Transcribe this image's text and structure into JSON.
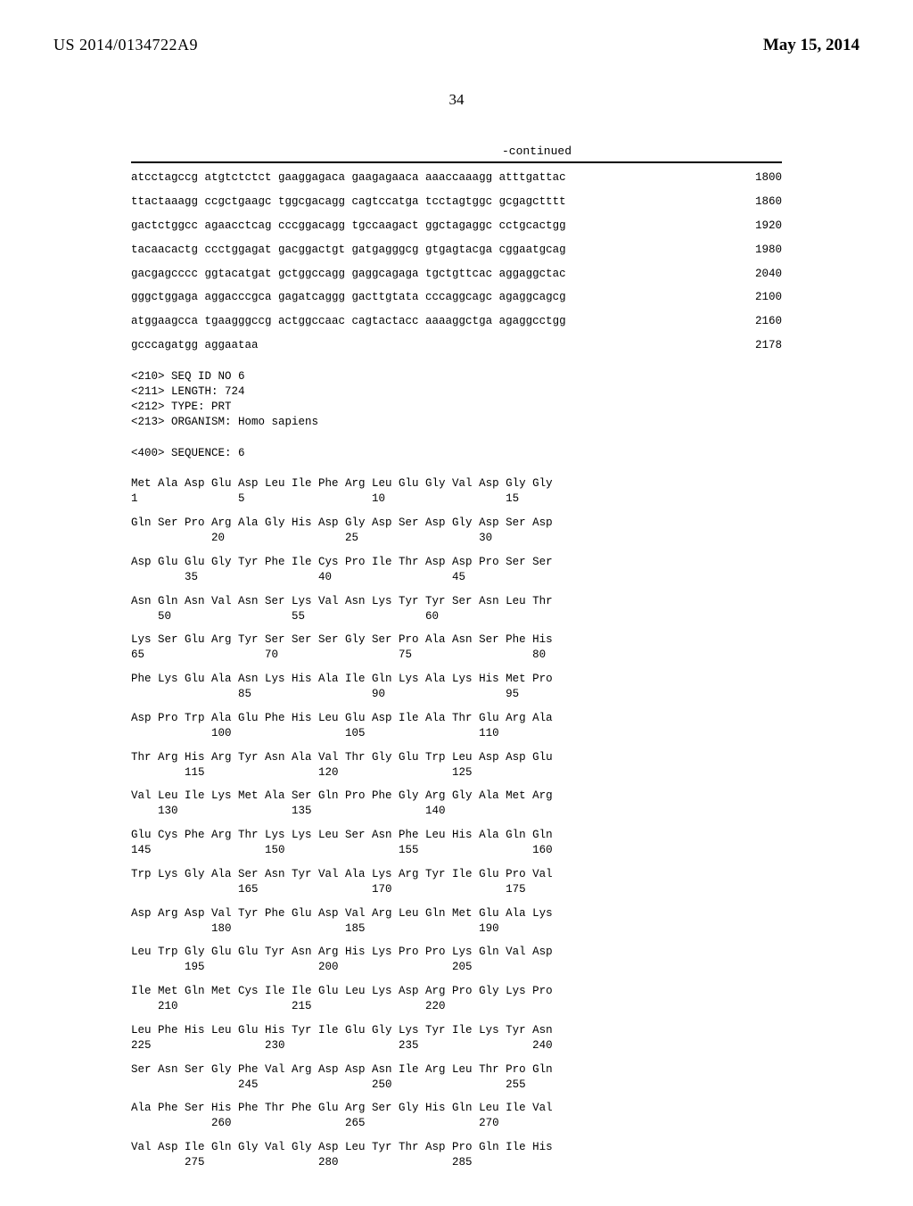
{
  "header": {
    "pub_number": "US 2014/0134722A9",
    "pub_date": "May 15, 2014"
  },
  "page_number": "34",
  "continued_label": "-continued",
  "nucleotide_rows": [
    {
      "seq": "atcctagccg atgtctctct gaaggagaca gaagagaaca aaaccaaagg atttgattac",
      "pos": "1800"
    },
    {
      "seq": "ttactaaagg ccgctgaagc tggcgacagg cagtccatga tcctagtggc gcgagctttt",
      "pos": "1860"
    },
    {
      "seq": "gactctggcc agaacctcag cccggacagg tgccaagact ggctagaggc cctgcactgg",
      "pos": "1920"
    },
    {
      "seq": "tacaacactg ccctggagat gacggactgt gatgagggcg gtgagtacga cggaatgcag",
      "pos": "1980"
    },
    {
      "seq": "gacgagcccc ggtacatgat gctggccagg gaggcagaga tgctgttcac aggaggctac",
      "pos": "2040"
    },
    {
      "seq": "gggctggaga aggacccgca gagatcaggg gacttgtata cccaggcagc agaggcagcg",
      "pos": "2100"
    },
    {
      "seq": "atggaagcca tgaagggccg actggccaac cagtactacc aaaaggctga agaggcctgg",
      "pos": "2160"
    },
    {
      "seq": "gcccagatgg aggaataa",
      "pos": "2178"
    }
  ],
  "seq_header": [
    "<210> SEQ ID NO 6",
    "<211> LENGTH: 724",
    "<212> TYPE: PRT",
    "<213> ORGANISM: Homo sapiens"
  ],
  "seq_marker": "<400> SEQUENCE: 6",
  "protein_rows": [
    {
      "aa": "Met Ala Asp Glu Asp Leu Ile Phe Arg Leu Glu Gly Val Asp Gly Gly",
      "nums": "1               5                   10                  15"
    },
    {
      "aa": "Gln Ser Pro Arg Ala Gly His Asp Gly Asp Ser Asp Gly Asp Ser Asp",
      "nums": "            20                  25                  30"
    },
    {
      "aa": "Asp Glu Glu Gly Tyr Phe Ile Cys Pro Ile Thr Asp Asp Pro Ser Ser",
      "nums": "        35                  40                  45"
    },
    {
      "aa": "Asn Gln Asn Val Asn Ser Lys Val Asn Lys Tyr Tyr Ser Asn Leu Thr",
      "nums": "    50                  55                  60"
    },
    {
      "aa": "Lys Ser Glu Arg Tyr Ser Ser Ser Gly Ser Pro Ala Asn Ser Phe His",
      "nums": "65                  70                  75                  80"
    },
    {
      "aa": "Phe Lys Glu Ala Asn Lys His Ala Ile Gln Lys Ala Lys His Met Pro",
      "nums": "                85                  90                  95"
    },
    {
      "aa": "Asp Pro Trp Ala Glu Phe His Leu Glu Asp Ile Ala Thr Glu Arg Ala",
      "nums": "            100                 105                 110"
    },
    {
      "aa": "Thr Arg His Arg Tyr Asn Ala Val Thr Gly Glu Trp Leu Asp Asp Glu",
      "nums": "        115                 120                 125"
    },
    {
      "aa": "Val Leu Ile Lys Met Ala Ser Gln Pro Phe Gly Arg Gly Ala Met Arg",
      "nums": "    130                 135                 140"
    },
    {
      "aa": "Glu Cys Phe Arg Thr Lys Lys Leu Ser Asn Phe Leu His Ala Gln Gln",
      "nums": "145                 150                 155                 160"
    },
    {
      "aa": "Trp Lys Gly Ala Ser Asn Tyr Val Ala Lys Arg Tyr Ile Glu Pro Val",
      "nums": "                165                 170                 175"
    },
    {
      "aa": "Asp Arg Asp Val Tyr Phe Glu Asp Val Arg Leu Gln Met Glu Ala Lys",
      "nums": "            180                 185                 190"
    },
    {
      "aa": "Leu Trp Gly Glu Glu Tyr Asn Arg His Lys Pro Pro Lys Gln Val Asp",
      "nums": "        195                 200                 205"
    },
    {
      "aa": "Ile Met Gln Met Cys Ile Ile Glu Leu Lys Asp Arg Pro Gly Lys Pro",
      "nums": "    210                 215                 220"
    },
    {
      "aa": "Leu Phe His Leu Glu His Tyr Ile Glu Gly Lys Tyr Ile Lys Tyr Asn",
      "nums": "225                 230                 235                 240"
    },
    {
      "aa": "Ser Asn Ser Gly Phe Val Arg Asp Asp Asn Ile Arg Leu Thr Pro Gln",
      "nums": "                245                 250                 255"
    },
    {
      "aa": "Ala Phe Ser His Phe Thr Phe Glu Arg Ser Gly His Gln Leu Ile Val",
      "nums": "            260                 265                 270"
    },
    {
      "aa": "Val Asp Ile Gln Gly Val Gly Asp Leu Tyr Thr Asp Pro Gln Ile His",
      "nums": "        275                 280                 285"
    }
  ]
}
